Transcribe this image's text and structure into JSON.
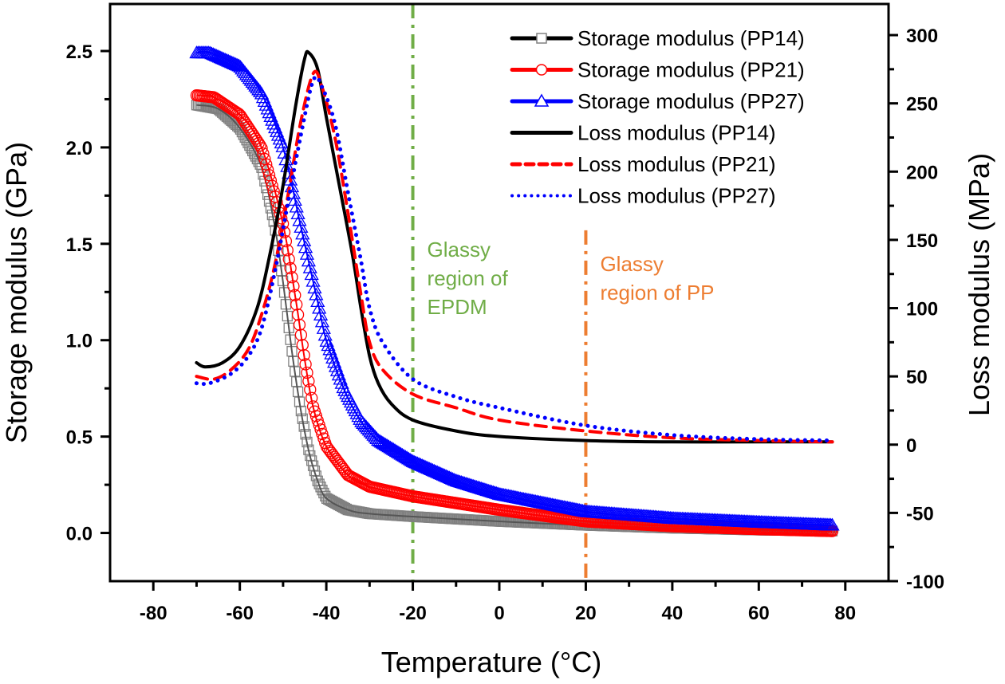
{
  "chart_data": {
    "type": "line",
    "title": "",
    "xlabel": "Temperature (°C)",
    "ylabel_left": "Storage modulus (GPa)",
    "ylabel_right": "Loss modulus (MPa)",
    "xlim": [
      -90,
      90
    ],
    "ylim_left": [
      -0.25,
      2.744
    ],
    "ylim_right": [
      -100,
      322.8
    ],
    "x_ticks": [
      -80,
      -60,
      -40,
      -20,
      0,
      20,
      40,
      60,
      80
    ],
    "x_tick_labels": [
      "-80",
      "-60",
      "-40",
      "-20",
      "0",
      "20",
      "40",
      "60",
      "80"
    ],
    "y_left_ticks": [
      0.0,
      0.5,
      1.0,
      1.5,
      2.0,
      2.5
    ],
    "y_left_tick_labels": [
      "0.0",
      "0.5",
      "1.0",
      "1.5",
      "2.0",
      "2.5"
    ],
    "y_right_ticks": [
      -100,
      -50,
      0,
      50,
      100,
      150,
      200,
      250,
      300
    ],
    "y_right_tick_labels": [
      "-100",
      "-50",
      "0",
      "50",
      "100",
      "150",
      "200",
      "250",
      "300"
    ],
    "grid": false,
    "legend_position": "top-right",
    "series": [
      {
        "name": "Storage modulus (PP14)",
        "axis": "left",
        "color": "#000000",
        "marker_color": "#808080",
        "marker": "square",
        "style": "solid",
        "x": [
          -70,
          -65,
          -60,
          -55,
          -52,
          -50,
          -48,
          -46,
          -44,
          -42,
          -40,
          -35,
          -30,
          -20,
          0,
          20,
          40,
          60,
          77
        ],
        "y": [
          2.22,
          2.2,
          2.1,
          1.9,
          1.6,
          1.3,
          0.95,
          0.65,
          0.42,
          0.27,
          0.18,
          0.12,
          0.1,
          0.085,
          0.06,
          0.04,
          0.025,
          0.015,
          0.01
        ]
      },
      {
        "name": "Storage modulus (PP21)",
        "axis": "left",
        "color": "#ff0000",
        "marker_color": "#ff0000",
        "marker": "circle",
        "style": "solid",
        "x": [
          -70,
          -66,
          -60,
          -55,
          -50,
          -47,
          -45,
          -43,
          -40,
          -35,
          -30,
          -20,
          0,
          20,
          40,
          60,
          77
        ],
        "y": [
          2.27,
          2.26,
          2.17,
          2.0,
          1.6,
          1.2,
          0.9,
          0.65,
          0.45,
          0.3,
          0.24,
          0.19,
          0.12,
          0.06,
          0.035,
          0.02,
          0.01
        ]
      },
      {
        "name": "Storage modulus (PP27)",
        "axis": "left",
        "color": "#0000ff",
        "marker_color": "#0000ff",
        "marker": "triangle",
        "style": "solid",
        "x": [
          -70,
          -67,
          -60,
          -55,
          -50,
          -46,
          -42,
          -40,
          -36,
          -32,
          -28,
          -20,
          -10,
          0,
          20,
          40,
          60,
          77
        ],
        "y": [
          2.49,
          2.49,
          2.42,
          2.28,
          2.0,
          1.6,
          1.2,
          1.0,
          0.75,
          0.58,
          0.48,
          0.37,
          0.27,
          0.2,
          0.11,
          0.075,
          0.055,
          0.04
        ]
      },
      {
        "name": "Loss modulus (PP14)",
        "axis": "right",
        "color": "#000000",
        "style": "solid",
        "x": [
          -70,
          -68,
          -64,
          -60,
          -56,
          -53,
          -50,
          -47,
          -45,
          -44,
          -42,
          -40,
          -37,
          -34,
          -32,
          -30,
          -28,
          -25,
          -20,
          -10,
          0,
          20,
          40,
          60,
          77
        ],
        "y": [
          60,
          57,
          60,
          72,
          100,
          140,
          190,
          250,
          283,
          287,
          275,
          240,
          190,
          140,
          100,
          65,
          45,
          30,
          18,
          10,
          6,
          3,
          2,
          2,
          2
        ]
      },
      {
        "name": "Loss modulus (PP21)",
        "axis": "right",
        "color": "#ff0000",
        "style": "dashed",
        "x": [
          -70,
          -66,
          -62,
          -58,
          -55,
          -52,
          -49,
          -46,
          -43,
          -41,
          -38,
          -35,
          -32,
          -30,
          -27,
          -20,
          -10,
          0,
          20,
          40,
          60,
          77
        ],
        "y": [
          50,
          48,
          55,
          70,
          95,
          130,
          180,
          235,
          272,
          262,
          225,
          170,
          110,
          75,
          55,
          37,
          27,
          18,
          10,
          5,
          3,
          2
        ]
      },
      {
        "name": "Loss modulus (PP27)",
        "axis": "right",
        "color": "#0000ff",
        "style": "dotted",
        "x": [
          -70,
          -67,
          -62,
          -58,
          -55,
          -52,
          -49,
          -46,
          -43,
          -41,
          -38,
          -35,
          -32,
          -30,
          -27,
          -20,
          -10,
          0,
          20,
          40,
          60,
          77
        ],
        "y": [
          45,
          45,
          52,
          65,
          85,
          125,
          175,
          225,
          267,
          262,
          235,
          185,
          135,
          100,
          75,
          48,
          35,
          27,
          14,
          7,
          4,
          3
        ]
      }
    ],
    "reference_lines": [
      {
        "x": -20,
        "color": "#70ad47",
        "style": "dash-dot",
        "label": [
          "Glassy",
          "region of",
          "EPDM"
        ],
        "y_left_from": -0.25,
        "y_left_to": 2.744
      },
      {
        "x": 20,
        "color": "#ed7d31",
        "style": "dash-dot",
        "label": [
          "Glassy",
          "region of PP"
        ],
        "y_left_from": -0.25,
        "y_left_to": 1.57
      }
    ]
  }
}
